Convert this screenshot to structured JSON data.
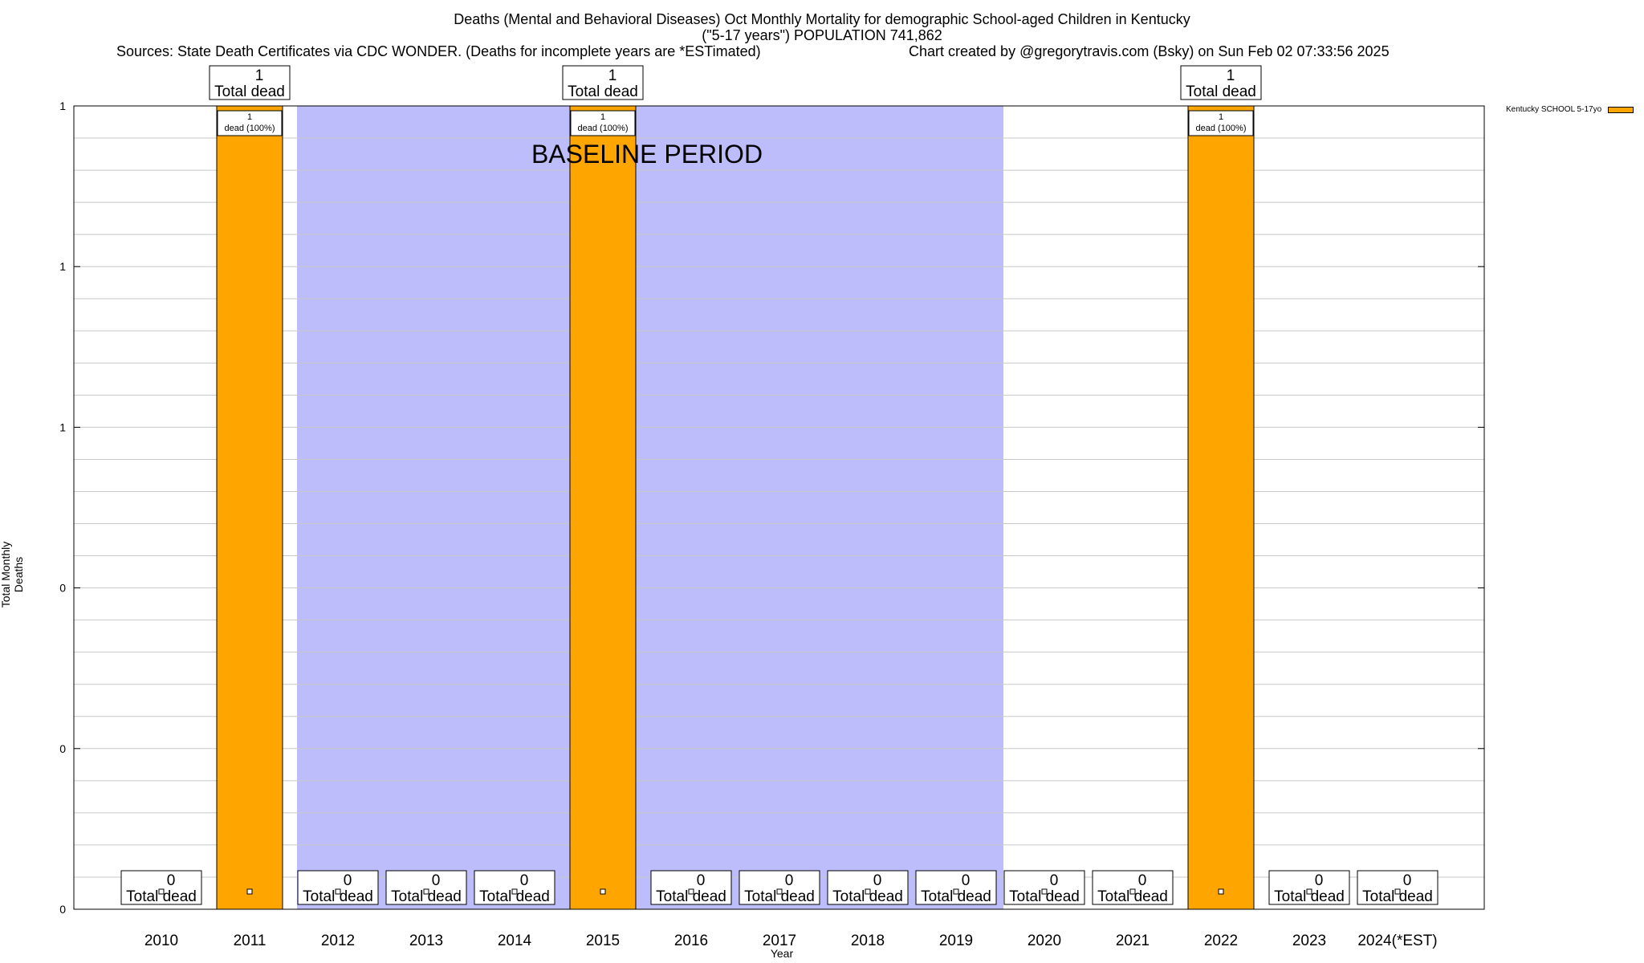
{
  "header": {
    "title_line1": "Deaths (Mental and Behavioral Diseases) Oct Monthly Mortality for demographic School-aged Children in Kentucky",
    "title_line2": "(\"5-17 years\") POPULATION 741,862",
    "sources": "Sources: State Death Certificates via CDC WONDER. (Deaths for incomplete years are *ESTimated)",
    "credit": "Chart created by @gregorytravis.com (Bsky) on Sun Feb 02 07:33:56 2025"
  },
  "chart_data": {
    "type": "bar",
    "categories": [
      "2010",
      "2011",
      "2012",
      "2013",
      "2014",
      "2015",
      "2016",
      "2017",
      "2018",
      "2019",
      "2020",
      "2021",
      "2022",
      "2023",
      "2024(*EST)"
    ],
    "series": [
      {
        "name": "Kentucky SCHOOL 5-17yo",
        "values": [
          0,
          1,
          0,
          0,
          0,
          1,
          0,
          0,
          0,
          0,
          0,
          0,
          1,
          0,
          0
        ]
      }
    ],
    "total_labels": [
      {
        "count": "0",
        "label": "Total dead"
      },
      {
        "count": "1",
        "label": "Total dead"
      },
      {
        "count": "0",
        "label": "Total dead"
      },
      {
        "count": "0",
        "label": "Total dead"
      },
      {
        "count": "0",
        "label": "Total dead"
      },
      {
        "count": "1",
        "label": "Total dead"
      },
      {
        "count": "0",
        "label": "Total dead"
      },
      {
        "count": "0",
        "label": "Total dead"
      },
      {
        "count": "0",
        "label": "Total dead"
      },
      {
        "count": "0",
        "label": "Total dead"
      },
      {
        "count": "0",
        "label": "Total dead"
      },
      {
        "count": "0",
        "label": "Total dead"
      },
      {
        "count": "1",
        "label": "Total dead"
      },
      {
        "count": "0",
        "label": "Total dead"
      },
      {
        "count": "0",
        "label": "Total dead"
      }
    ],
    "inner_label": {
      "count": "1",
      "text": "dead (100%)"
    },
    "baseline": {
      "label": "BASELINE PERIOD",
      "from": "2012",
      "to": "2019"
    },
    "ylim": [
      0,
      1
    ],
    "ytick_values": [
      0,
      0.2,
      0.4,
      0.6,
      0.8,
      1
    ],
    "ytick_labels": [
      "0",
      "0",
      "0",
      "1",
      "1",
      "1"
    ],
    "minor_per_major": 5,
    "xlabel": "Year",
    "ylabel": "Total Monthly Deaths",
    "grid": true,
    "legend_position": "top-right",
    "colors": {
      "bar": "#FFA500",
      "baseline": "#BDBDFB",
      "grid": "#C8C8C8"
    }
  }
}
